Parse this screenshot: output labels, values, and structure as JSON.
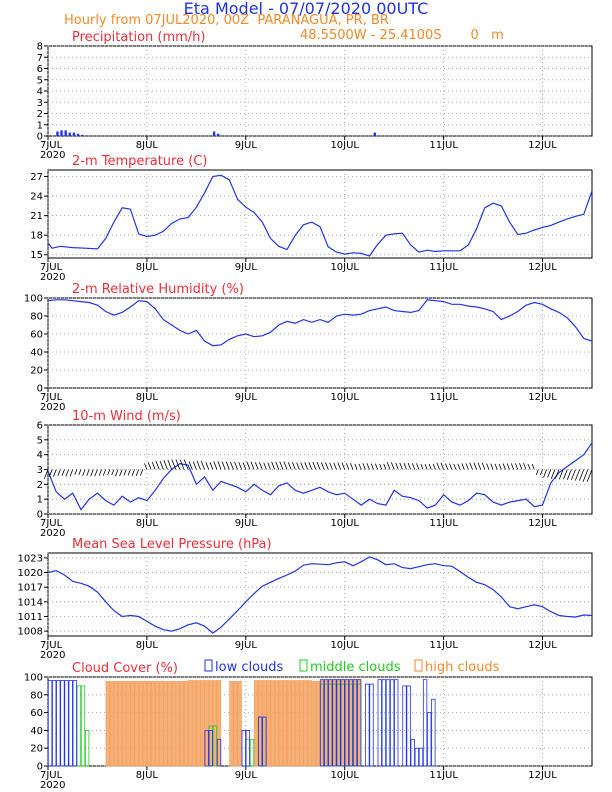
{
  "header": {
    "title": "Eta Model - 07/07/2020 00UTC",
    "line1": "Hourly from 07JUL2020, 00Z  PARANAGUA, PR, BR",
    "line2": "48.5500W - 25.4100S       0   m"
  },
  "colors": {
    "blue": "#2233ee",
    "red": "#e8303a",
    "orange": "#f08a2a",
    "green": "#22cc22",
    "low": "#2233ee",
    "middle": "#22cc22",
    "high": "#f4a261"
  },
  "x_axis": {
    "ticks": [
      "7JUL",
      "8JUL",
      "9JUL",
      "10JUL",
      "11JUL",
      "12JUL"
    ],
    "year": "2020",
    "range_hours": [
      0,
      132
    ]
  },
  "chart_data": [
    {
      "type": "bar",
      "title": "Precipitation (mm/h)",
      "ylim": [
        0,
        8
      ],
      "yticks": [
        "0",
        "1",
        "2",
        "3",
        "4",
        "5",
        "6",
        "7",
        "8"
      ],
      "x": [
        2,
        3,
        4,
        5,
        6,
        7,
        8,
        40,
        41,
        79
      ],
      "values": [
        0.4,
        0.5,
        0.5,
        0.3,
        0.3,
        0.2,
        0.1,
        0.4,
        0.2,
        0.3
      ]
    },
    {
      "type": "line",
      "title": "2-m Temperature (C)",
      "ylim": [
        14.5,
        28
      ],
      "yticks": [
        "15",
        "18",
        "21",
        "24",
        "27"
      ],
      "x": [
        0,
        1,
        3,
        6,
        9,
        12,
        14,
        16,
        18,
        20,
        22,
        24,
        26,
        28,
        30,
        32,
        34,
        36,
        38,
        40,
        42,
        44,
        46,
        48,
        50,
        52,
        54,
        56,
        58,
        60,
        62,
        64,
        66,
        68,
        70,
        72,
        74,
        76,
        78,
        80,
        82,
        84,
        86,
        88,
        90,
        92,
        94,
        96,
        98,
        100,
        102,
        104,
        106,
        108,
        110,
        112,
        114,
        116,
        118,
        120,
        122,
        124,
        126,
        128,
        130,
        131,
        132
      ],
      "values": [
        16.8,
        16.0,
        16.3,
        16.1,
        16.0,
        15.9,
        17.5,
        20.0,
        22.2,
        22.0,
        18.2,
        17.8,
        18.0,
        18.6,
        19.8,
        20.5,
        20.7,
        22.3,
        24.5,
        27.0,
        27.2,
        26.5,
        23.5,
        22.3,
        21.5,
        20.0,
        17.5,
        16.3,
        15.8,
        18.0,
        19.6,
        20.0,
        19.3,
        16.2,
        15.4,
        15.1,
        15.3,
        15.2,
        14.8,
        16.6,
        18.0,
        18.2,
        18.3,
        16.5,
        15.4,
        15.7,
        15.5,
        15.6,
        15.6,
        15.6,
        16.5,
        19.0,
        22.2,
        22.9,
        22.5,
        20.0,
        18.1,
        18.3,
        18.8,
        19.2,
        19.5,
        20.0,
        20.5,
        20.9,
        21.2,
        23.0,
        24.8
      ]
    },
    {
      "type": "line",
      "title": "2-m Relative Humidity (%)",
      "ylim": [
        0,
        100
      ],
      "yticks": [
        "0",
        "20",
        "40",
        "60",
        "80",
        "100"
      ],
      "x": [
        0,
        2,
        4,
        6,
        8,
        10,
        12,
        14,
        16,
        18,
        20,
        22,
        24,
        26,
        28,
        30,
        32,
        34,
        36,
        38,
        40,
        42,
        44,
        46,
        48,
        50,
        52,
        54,
        56,
        58,
        60,
        62,
        64,
        66,
        68,
        70,
        72,
        74,
        76,
        78,
        80,
        82,
        84,
        86,
        88,
        90,
        92,
        94,
        96,
        98,
        100,
        102,
        104,
        106,
        108,
        110,
        112,
        114,
        116,
        118,
        120,
        122,
        124,
        126,
        128,
        130,
        132
      ],
      "values": [
        97,
        98,
        98,
        97,
        96,
        95,
        92,
        85,
        81,
        84,
        90,
        97,
        96,
        88,
        76,
        70,
        64,
        60,
        64,
        52,
        47,
        48,
        54,
        58,
        60,
        57,
        58,
        62,
        70,
        74,
        72,
        76,
        73,
        76,
        73,
        80,
        82,
        81,
        82,
        86,
        88,
        90,
        86,
        85,
        84,
        86,
        98,
        97,
        96,
        93,
        93,
        91,
        90,
        88,
        85,
        76,
        80,
        85,
        92,
        95,
        93,
        88,
        84,
        78,
        68,
        55,
        52
      ]
    },
    {
      "type": "line",
      "title": "10-m Wind (m/s)",
      "ylim": [
        0,
        6
      ],
      "yticks": [
        "0",
        "1",
        "2",
        "3",
        "4",
        "5",
        "6"
      ],
      "x": [
        0,
        2,
        4,
        6,
        8,
        10,
        12,
        14,
        16,
        18,
        20,
        22,
        24,
        26,
        28,
        30,
        32,
        34,
        36,
        38,
        40,
        42,
        44,
        46,
        48,
        50,
        52,
        54,
        56,
        58,
        60,
        62,
        64,
        66,
        68,
        70,
        72,
        74,
        76,
        78,
        80,
        82,
        84,
        86,
        88,
        90,
        92,
        94,
        96,
        98,
        100,
        102,
        104,
        106,
        108,
        110,
        112,
        114,
        116,
        118,
        120,
        122,
        124,
        126,
        128,
        130,
        132
      ],
      "values": [
        2.9,
        1.5,
        1.0,
        1.4,
        0.3,
        1.0,
        1.4,
        0.9,
        0.6,
        1.2,
        0.8,
        1.1,
        0.9,
        1.6,
        2.4,
        3.0,
        3.4,
        3.3,
        2.0,
        2.5,
        1.6,
        2.2,
        2.0,
        1.8,
        1.5,
        2.0,
        1.6,
        1.3,
        1.9,
        2.1,
        1.6,
        1.4,
        1.6,
        1.8,
        1.5,
        1.3,
        1.4,
        1.0,
        0.6,
        1.0,
        0.7,
        0.6,
        1.6,
        1.2,
        1.1,
        0.9,
        0.4,
        0.6,
        1.3,
        0.8,
        0.6,
        0.9,
        1.4,
        1.3,
        0.8,
        0.6,
        0.8,
        0.9,
        1.0,
        0.5,
        0.6,
        2.1,
        2.8,
        3.2,
        3.6,
        4.0,
        4.8
      ],
      "barbs": "wind direction barbs plotted along y=3"
    },
    {
      "type": "line",
      "title": "Mean Sea Level Pressure (hPa)",
      "ylim": [
        1007,
        1024
      ],
      "yticks": [
        "1008",
        "1011",
        "1014",
        "1017",
        "1020",
        "1023"
      ],
      "x": [
        0,
        2,
        4,
        6,
        8,
        10,
        12,
        14,
        16,
        18,
        20,
        22,
        24,
        26,
        28,
        30,
        32,
        34,
        36,
        38,
        40,
        42,
        44,
        46,
        48,
        50,
        52,
        54,
        56,
        58,
        60,
        62,
        64,
        66,
        68,
        70,
        72,
        74,
        76,
        78,
        80,
        82,
        84,
        86,
        88,
        90,
        92,
        94,
        96,
        98,
        100,
        102,
        104,
        106,
        108,
        110,
        112,
        114,
        116,
        118,
        120,
        122,
        124,
        126,
        128,
        130,
        132
      ],
      "values": [
        1020.0,
        1020.4,
        1019.5,
        1018.2,
        1017.8,
        1017.2,
        1016.0,
        1014.0,
        1012.2,
        1011.0,
        1011.2,
        1011.0,
        1010.0,
        1009.0,
        1008.3,
        1008.0,
        1008.5,
        1009.3,
        1009.7,
        1009.0,
        1007.6,
        1008.8,
        1010.5,
        1012.2,
        1014.0,
        1015.7,
        1017.2,
        1018.0,
        1018.8,
        1019.5,
        1020.3,
        1021.5,
        1021.8,
        1021.7,
        1021.6,
        1022.0,
        1022.2,
        1021.4,
        1022.2,
        1023.2,
        1022.6,
        1021.6,
        1021.8,
        1021.0,
        1020.8,
        1021.2,
        1021.6,
        1021.8,
        1021.4,
        1021.3,
        1020.2,
        1019.0,
        1018.0,
        1017.5,
        1016.5,
        1015.0,
        1013.0,
        1012.6,
        1013.0,
        1013.4,
        1013.0,
        1012.0,
        1011.2,
        1011.0,
        1010.9,
        1011.3,
        1011.2
      ]
    },
    {
      "type": "bar",
      "title": "Cloud Cover (%)",
      "legend": [
        "low clouds",
        "middle clouds",
        "high clouds"
      ],
      "ylim": [
        0,
        100
      ],
      "yticks": [
        "0",
        "20",
        "40",
        "60",
        "80",
        "100"
      ],
      "series": [
        {
          "name": "low clouds",
          "segments": [
            [
              0,
              7,
              96
            ],
            [
              30,
              33,
              0
            ],
            [
              38,
              40,
              40
            ],
            [
              41,
              42,
              30
            ],
            [
              47,
              49,
              40
            ],
            [
              51,
              53,
              55
            ],
            [
              66,
              76,
              97
            ],
            [
              77,
              79,
              92
            ],
            [
              80,
              85,
              97
            ],
            [
              86,
              88,
              90
            ],
            [
              88,
              89,
              30
            ],
            [
              89,
              91,
              20
            ],
            [
              91,
              92,
              97
            ],
            [
              92,
              93,
              60
            ],
            [
              93,
              94,
              75
            ]
          ]
        },
        {
          "name": "middle clouds",
          "segments": [
            [
              7,
              9,
              90
            ],
            [
              9,
              10,
              40
            ],
            [
              39,
              41,
              45
            ],
            [
              48,
              50,
              30
            ],
            [
              51,
              53,
              55
            ],
            [
              66,
              76,
              92
            ]
          ]
        },
        {
          "name": "high clouds",
          "segments": [
            [
              14,
              34,
              95
            ],
            [
              34,
              39,
              96
            ],
            [
              39,
              42,
              96
            ],
            [
              44,
              47,
              95
            ],
            [
              50,
              64,
              96
            ],
            [
              64,
              66,
              95
            ],
            [
              66,
              76,
              97
            ]
          ]
        }
      ]
    }
  ]
}
